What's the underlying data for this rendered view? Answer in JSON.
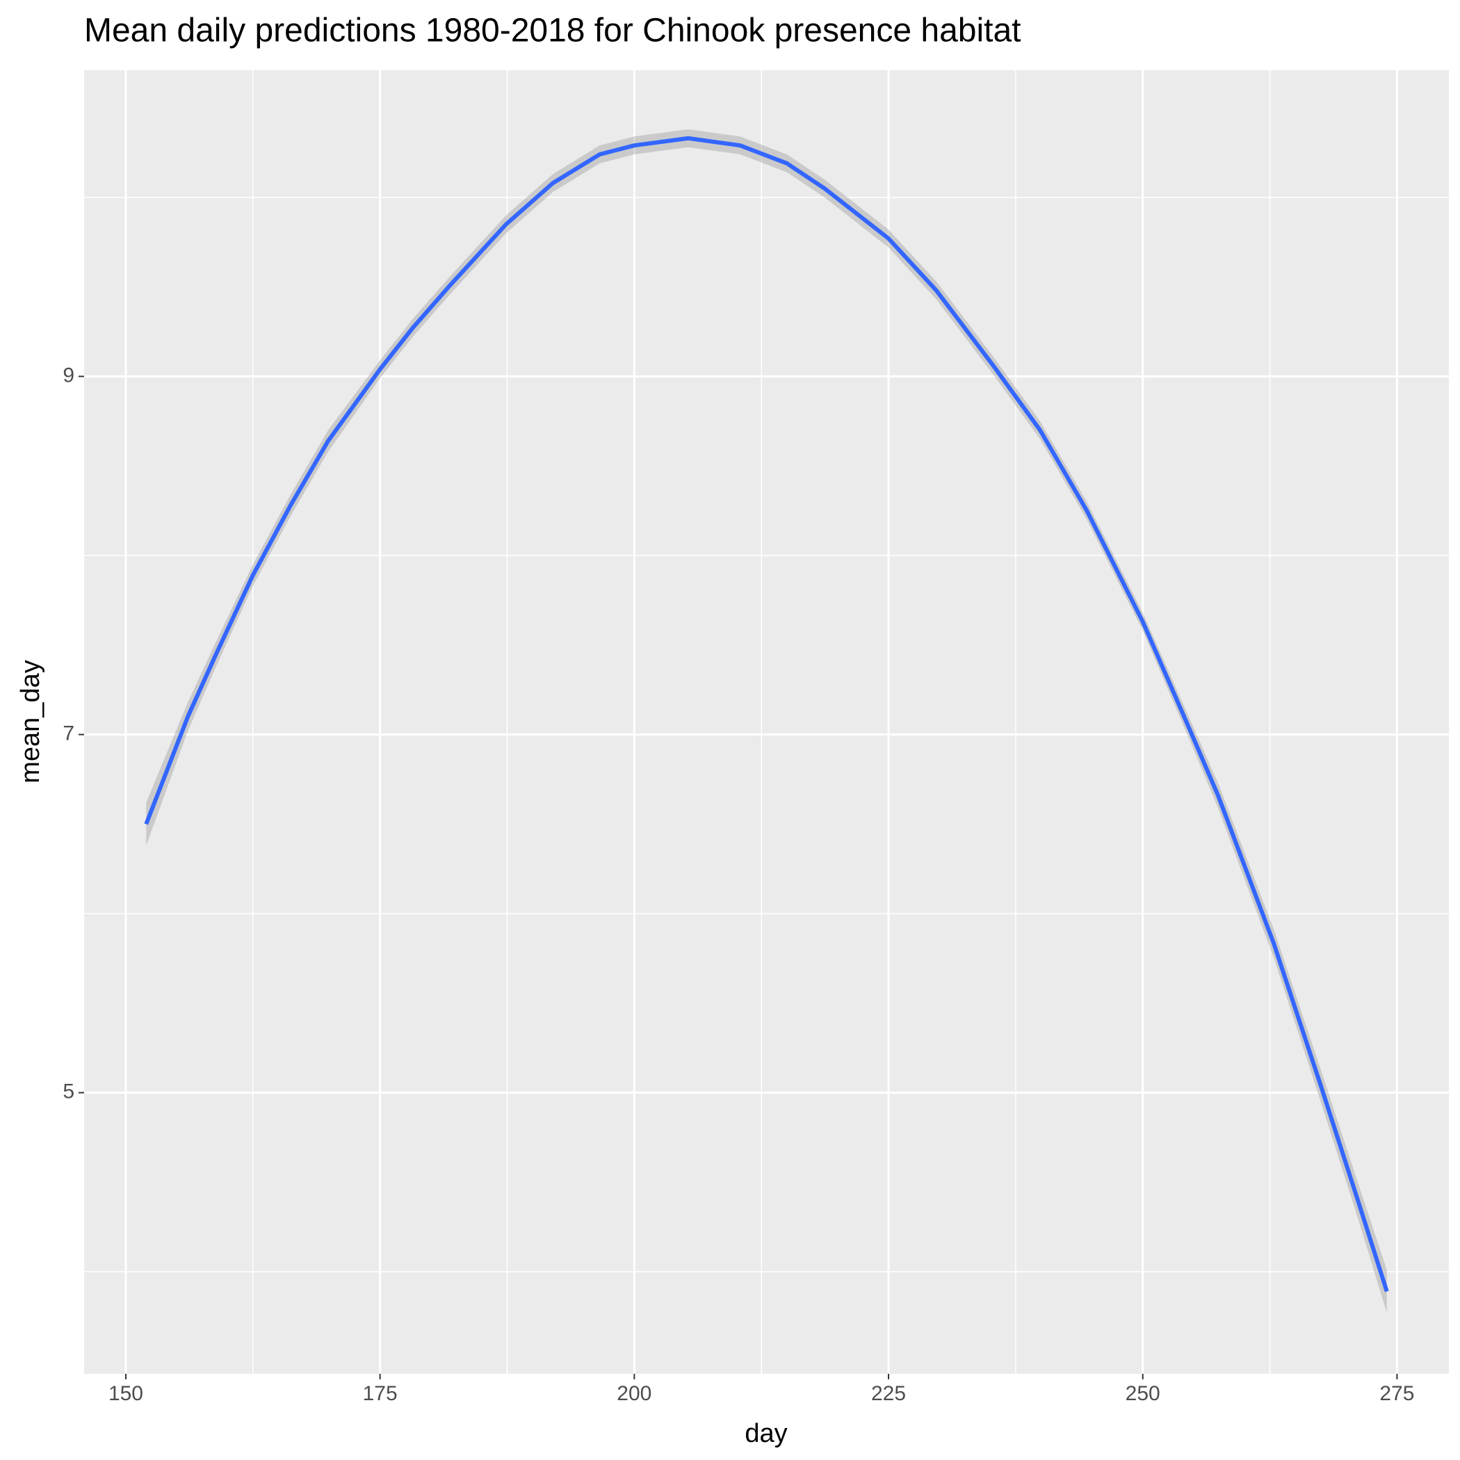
{
  "chart_data": {
    "type": "line",
    "title": "Mean daily predictions 1980-2018 for Chinook presence habitat",
    "x_label": "day",
    "y_label": "mean_day",
    "x": [
      152,
      156.1,
      158.8,
      162.5,
      166.2,
      169.9,
      175,
      178.2,
      181.9,
      187.4,
      192,
      196.6,
      200,
      205.3,
      210.4,
      215,
      218.7,
      225,
      229.7,
      235.3,
      239.9,
      244.5,
      250,
      254.6,
      257.4,
      262.9,
      267.5,
      271.2,
      274
    ],
    "series": [
      {
        "color": "#3366ff",
        "values": [
          6.5,
          7.1,
          7.44,
          7.89,
          8.28,
          8.64,
          9.04,
          9.27,
          9.51,
          9.85,
          10.08,
          10.24,
          10.29,
          10.33,
          10.29,
          10.19,
          10.05,
          9.77,
          9.48,
          9.06,
          8.7,
          8.25,
          7.63,
          7.03,
          6.66,
          5.83,
          5.04,
          4.39,
          3.89
        ],
        "lower": [
          6.38,
          7.02,
          7.37,
          7.83,
          8.22,
          8.58,
          8.99,
          9.22,
          9.46,
          9.8,
          10.03,
          10.19,
          10.24,
          10.28,
          10.24,
          10.14,
          10.0,
          9.72,
          9.43,
          9.01,
          8.65,
          8.2,
          7.58,
          6.97,
          6.59,
          5.75,
          4.95,
          4.29,
          3.77
        ],
        "upper": [
          6.62,
          7.18,
          7.51,
          7.95,
          8.34,
          8.7,
          9.09,
          9.32,
          9.56,
          9.9,
          10.13,
          10.29,
          10.34,
          10.38,
          10.34,
          10.24,
          10.1,
          9.82,
          9.53,
          9.11,
          8.75,
          8.3,
          7.68,
          7.09,
          6.73,
          5.91,
          5.13,
          4.49,
          4.01
        ],
        "ribbon_color": "#999999"
      }
    ],
    "xlim": [
      145.9,
      280.1
    ],
    "xticks": [
      150,
      175,
      200,
      225,
      250,
      275
    ],
    "xminor": [
      162.5,
      187.5,
      212.5,
      237.5,
      262.5
    ],
    "ylim": [
      3.43,
      10.71
    ],
    "yticks": [
      5,
      7,
      9
    ],
    "yminor": [
      4,
      6,
      8,
      10
    ],
    "grid": true
  }
}
